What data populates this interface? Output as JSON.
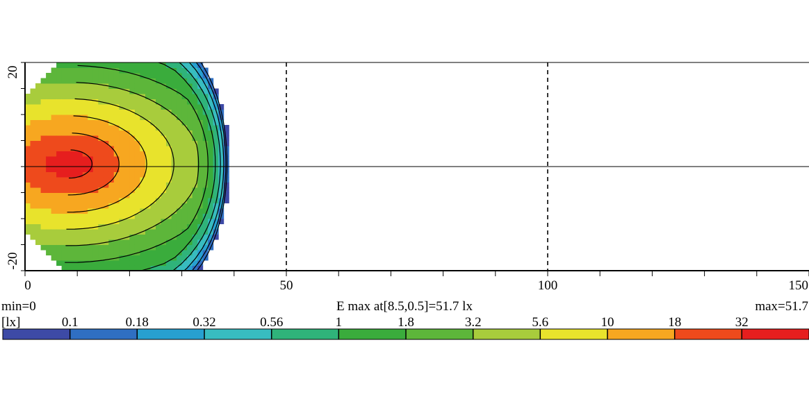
{
  "chart_data": {
    "type": "heatmap",
    "x_axis": {
      "range": [
        0,
        150
      ],
      "major_ticks": [
        0,
        50,
        100,
        150
      ],
      "minor_step": 10
    },
    "y_axis": {
      "range": [
        -20,
        20
      ],
      "major_ticks": [
        -20,
        20
      ],
      "minor_step": 5
    },
    "gridlines_x": [
      50,
      100
    ],
    "centerline_y": 0,
    "max_point": {
      "x": 8.5,
      "y": 0.5,
      "value": 51.7
    },
    "summary": {
      "min_text": "min=0",
      "max_text": "max=51.7",
      "center_text": "E max at[8.5,0.5]=51.7 lx"
    },
    "colorbar": {
      "unit_label": "[lx]",
      "tick_labels": [
        "0.1",
        "0.18",
        "0.32",
        "0.56",
        "1",
        "1.8",
        "3.2",
        "5.6",
        "10",
        "18",
        "32"
      ],
      "tick_values": [
        0.1,
        0.18,
        0.32,
        0.56,
        1,
        1.8,
        3.2,
        5.6,
        10,
        18,
        32
      ],
      "colors": [
        "#3d4aa6",
        "#2f6fc2",
        "#27a0d0",
        "#38bcc0",
        "#2fb37a",
        "#3aac3c",
        "#5db63a",
        "#a8cc3c",
        "#e8e32c",
        "#f7a720",
        "#ee4a1c",
        "#e61e1e"
      ]
    },
    "contour_levels": [
      0.1,
      0.18,
      0.32,
      0.56,
      1,
      1.8,
      3.2,
      5.6,
      10,
      18,
      32
    ]
  }
}
